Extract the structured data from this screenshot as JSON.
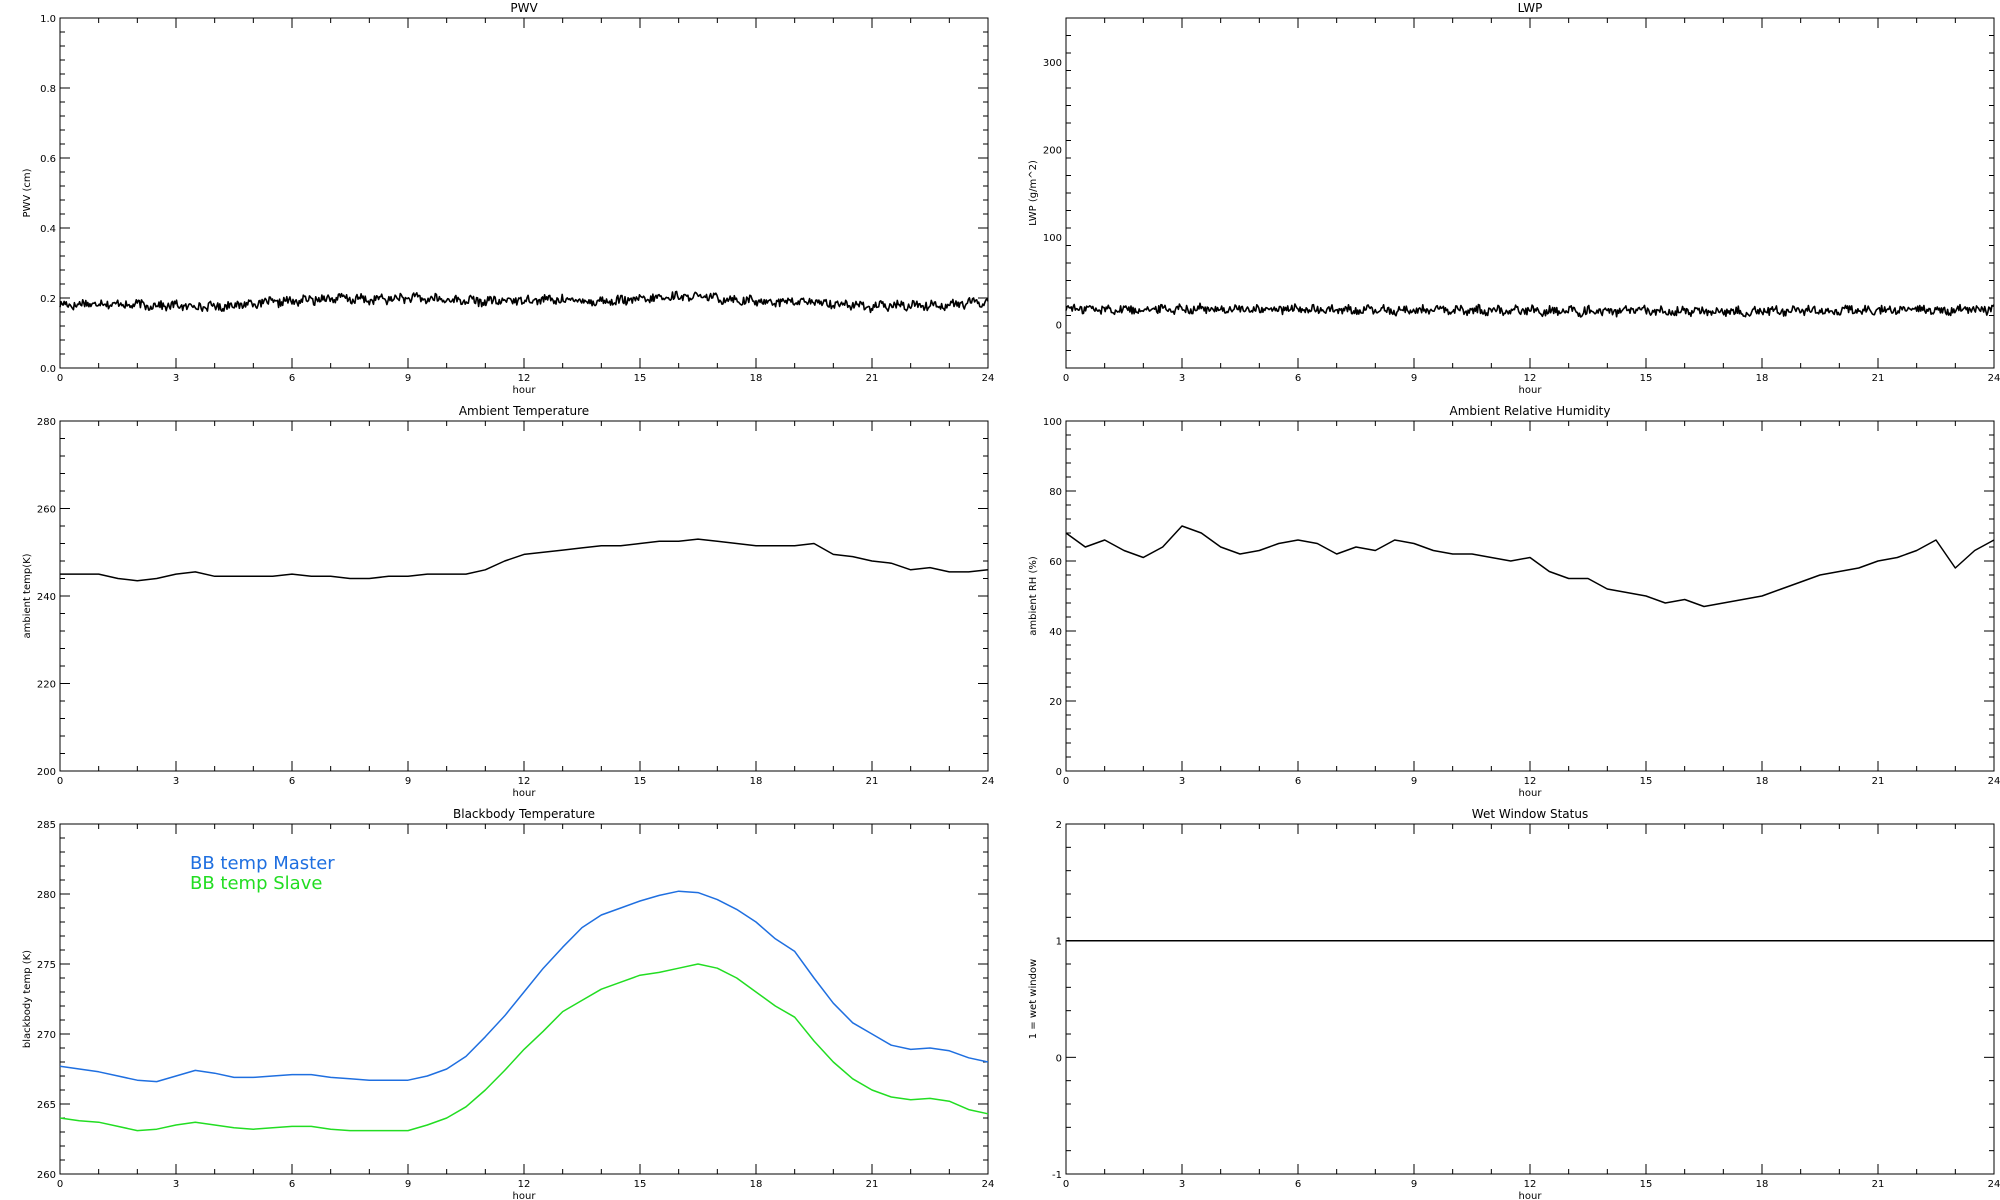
{
  "chart_data": [
    {
      "id": "pwv",
      "type": "line",
      "title": "PWV",
      "xlabel": "hour",
      "ylabel": "PWV (cm)",
      "xlim": [
        0,
        24
      ],
      "ylim": [
        0,
        1.0
      ],
      "xticks": [
        0,
        3,
        6,
        9,
        12,
        15,
        18,
        21,
        24
      ],
      "yticks": [
        0.0,
        0.2,
        0.4,
        0.6,
        0.8,
        1.0
      ],
      "ytick_labels": [
        "0.0",
        "0.2",
        "0.4",
        "0.6",
        "0.8",
        "1.0"
      ],
      "series": [
        {
          "color": "#000000",
          "style": "noisy",
          "x": [
            0,
            1,
            2,
            3,
            4,
            5,
            6,
            7,
            8,
            9,
            10,
            11,
            12,
            13,
            14,
            15,
            16,
            17,
            18,
            19,
            20,
            21,
            22,
            23,
            24
          ],
          "y": [
            0.18,
            0.185,
            0.18,
            0.178,
            0.175,
            0.185,
            0.19,
            0.2,
            0.195,
            0.2,
            0.195,
            0.19,
            0.195,
            0.195,
            0.19,
            0.195,
            0.205,
            0.2,
            0.19,
            0.19,
            0.185,
            0.175,
            0.18,
            0.18,
            0.19
          ]
        }
      ]
    },
    {
      "id": "lwp",
      "type": "line",
      "title": "LWP",
      "xlabel": "hour",
      "ylabel": "LWP (g/m^2)",
      "xlim": [
        0,
        24
      ],
      "ylim": [
        -50,
        350
      ],
      "xticks": [
        0,
        3,
        6,
        9,
        12,
        15,
        18,
        21,
        24
      ],
      "yticks": [
        0,
        100,
        200,
        300
      ],
      "ytick_labels": [
        "0",
        "100",
        "200",
        "300"
      ],
      "series": [
        {
          "color": "#000000",
          "style": "noisy",
          "x": [
            0,
            1,
            2,
            3,
            4,
            5,
            6,
            7,
            8,
            9,
            10,
            11,
            12,
            13,
            14,
            15,
            16,
            17,
            18,
            19,
            20,
            21,
            22,
            23,
            24
          ],
          "y": [
            18,
            17,
            17,
            18,
            17,
            17,
            17,
            16,
            16,
            16,
            16,
            16,
            16,
            15,
            15,
            15,
            15,
            15,
            15,
            16,
            16,
            16,
            16,
            16,
            17
          ]
        }
      ]
    },
    {
      "id": "ambient-temp",
      "type": "line",
      "title": "Ambient Temperature",
      "xlabel": "hour",
      "ylabel": "ambient temp(K)",
      "xlim": [
        0,
        24
      ],
      "ylim": [
        200,
        280
      ],
      "xticks": [
        0,
        3,
        6,
        9,
        12,
        15,
        18,
        21,
        24
      ],
      "yticks": [
        200,
        220,
        240,
        260,
        280
      ],
      "ytick_labels": [
        "200",
        "220",
        "240",
        "260",
        "280"
      ],
      "series": [
        {
          "color": "#000000",
          "style": "line",
          "x": [
            0,
            0.5,
            1,
            1.5,
            2,
            2.5,
            3,
            3.5,
            4,
            4.5,
            5,
            5.5,
            6,
            6.5,
            7,
            7.5,
            8,
            8.5,
            9,
            9.5,
            10,
            10.5,
            11,
            11.5,
            12,
            12.5,
            13,
            13.5,
            14,
            14.5,
            15,
            15.5,
            16,
            16.5,
            17,
            17.5,
            18,
            18.5,
            19,
            19.5,
            20,
            20.5,
            21,
            21.5,
            22,
            22.5,
            23,
            23.5,
            24
          ],
          "y": [
            245,
            245,
            245,
            244,
            243.5,
            244,
            245,
            245.5,
            244.5,
            244.5,
            244.5,
            244.5,
            245,
            244.5,
            244.5,
            244,
            244,
            244.5,
            244.5,
            245,
            245,
            245,
            246,
            248,
            249.5,
            250,
            250.5,
            251,
            251.5,
            251.5,
            252,
            252.5,
            252.5,
            253,
            252.5,
            252,
            251.5,
            251.5,
            251.5,
            252,
            249.5,
            249,
            248,
            247.5,
            246,
            246.5,
            245.5,
            245.5,
            246
          ]
        }
      ]
    },
    {
      "id": "ambient-rh",
      "type": "line",
      "title": "Ambient Relative Humidity",
      "xlabel": "hour",
      "ylabel": "ambient RH (%)",
      "xlim": [
        0,
        24
      ],
      "ylim": [
        0,
        100
      ],
      "xticks": [
        0,
        3,
        6,
        9,
        12,
        15,
        18,
        21,
        24
      ],
      "yticks": [
        0,
        20,
        40,
        60,
        80,
        100
      ],
      "ytick_labels": [
        "0",
        "20",
        "40",
        "60",
        "80",
        "100"
      ],
      "series": [
        {
          "color": "#000000",
          "style": "line",
          "x": [
            0,
            0.5,
            1,
            1.5,
            2,
            2.5,
            3,
            3.5,
            4,
            4.5,
            5,
            5.5,
            6,
            6.5,
            7,
            7.5,
            8,
            8.5,
            9,
            9.5,
            10,
            10.5,
            11,
            11.5,
            12,
            12.5,
            13,
            13.5,
            14,
            14.5,
            15,
            15.5,
            16,
            16.5,
            17,
            17.5,
            18,
            18.5,
            19,
            19.5,
            20,
            20.5,
            21,
            21.5,
            22,
            22.5,
            23,
            23.5,
            24
          ],
          "y": [
            68,
            64,
            66,
            63,
            61,
            64,
            70,
            68,
            64,
            62,
            63,
            65,
            66,
            65,
            62,
            64,
            63,
            66,
            65,
            63,
            62,
            62,
            61,
            60,
            61,
            57,
            55,
            55,
            52,
            51,
            50,
            48,
            49,
            47,
            48,
            49,
            50,
            52,
            54,
            56,
            57,
            58,
            60,
            61,
            63,
            66,
            58,
            63,
            66
          ]
        }
      ]
    },
    {
      "id": "bb-temp",
      "type": "line",
      "title": "Blackbody Temperature",
      "xlabel": "hour",
      "ylabel": "blackbody temp (K)",
      "xlim": [
        0,
        24
      ],
      "ylim": [
        260,
        285
      ],
      "xticks": [
        0,
        3,
        6,
        9,
        12,
        15,
        18,
        21,
        24
      ],
      "yticks": [
        260,
        265,
        270,
        275,
        280,
        285
      ],
      "ytick_labels": [
        "260",
        "265",
        "270",
        "275",
        "280",
        "285"
      ],
      "legend": [
        {
          "label": "BB temp Master",
          "color": "#1f6fe0"
        },
        {
          "label": "BB temp Slave",
          "color": "#22dd22"
        }
      ],
      "series": [
        {
          "name": "BB temp Master",
          "color": "#1f6fe0",
          "style": "line",
          "x": [
            0,
            0.5,
            1,
            1.5,
            2,
            2.5,
            3,
            3.5,
            4,
            4.5,
            5,
            5.5,
            6,
            6.5,
            7,
            7.5,
            8,
            8.5,
            9,
            9.5,
            10,
            10.5,
            11,
            11.5,
            12,
            12.5,
            13,
            13.5,
            14,
            14.5,
            15,
            15.5,
            16,
            16.5,
            17,
            17.5,
            18,
            18.5,
            19,
            19.5,
            20,
            20.5,
            21,
            21.5,
            22,
            22.5,
            23,
            23.5,
            24
          ],
          "y": [
            267.7,
            267.5,
            267.3,
            267.0,
            266.7,
            266.6,
            267.0,
            267.4,
            267.2,
            266.9,
            266.9,
            267.0,
            267.1,
            267.1,
            266.9,
            266.8,
            266.7,
            266.7,
            266.7,
            267.0,
            267.5,
            268.4,
            269.8,
            271.3,
            273.0,
            274.7,
            276.2,
            277.6,
            278.5,
            279.0,
            279.5,
            279.9,
            280.2,
            280.1,
            279.6,
            278.9,
            278.0,
            276.8,
            275.9,
            274.0,
            272.2,
            270.8,
            270.0,
            269.2,
            268.9,
            269.0,
            268.8,
            268.3,
            268.0
          ]
        },
        {
          "name": "BB temp Slave",
          "color": "#22dd22",
          "style": "line",
          "x": [
            0,
            0.5,
            1,
            1.5,
            2,
            2.5,
            3,
            3.5,
            4,
            4.5,
            5,
            5.5,
            6,
            6.5,
            7,
            7.5,
            8,
            8.5,
            9,
            9.5,
            10,
            10.5,
            11,
            11.5,
            12,
            12.5,
            13,
            13.5,
            14,
            14.5,
            15,
            15.5,
            16,
            16.5,
            17,
            17.5,
            18,
            18.5,
            19,
            19.5,
            20,
            20.5,
            21,
            21.5,
            22,
            22.5,
            23,
            23.5,
            24
          ],
          "y": [
            264.0,
            263.8,
            263.7,
            263.4,
            263.1,
            263.2,
            263.5,
            263.7,
            263.5,
            263.3,
            263.2,
            263.3,
            263.4,
            263.4,
            263.2,
            263.1,
            263.1,
            263.1,
            263.1,
            263.5,
            264.0,
            264.8,
            266.0,
            267.4,
            268.9,
            270.2,
            271.6,
            272.4,
            273.2,
            273.7,
            274.2,
            274.4,
            274.7,
            275.0,
            274.7,
            274.0,
            273.0,
            272.0,
            271.2,
            269.5,
            268.0,
            266.8,
            266.0,
            265.5,
            265.3,
            265.4,
            265.2,
            264.6,
            264.3
          ]
        }
      ]
    },
    {
      "id": "wet-window",
      "type": "line",
      "title": "Wet Window Status",
      "xlabel": "hour",
      "ylabel": "1 = wet window",
      "xlim": [
        0,
        24
      ],
      "ylim": [
        -1,
        2
      ],
      "xticks": [
        0,
        3,
        6,
        9,
        12,
        15,
        18,
        21,
        24
      ],
      "yticks": [
        -1,
        0,
        1,
        2
      ],
      "ytick_labels": [
        "-1",
        "0",
        "1",
        "2"
      ],
      "series": [
        {
          "color": "#000000",
          "style": "line",
          "x": [
            0,
            24
          ],
          "y": [
            1,
            1
          ]
        }
      ]
    }
  ]
}
